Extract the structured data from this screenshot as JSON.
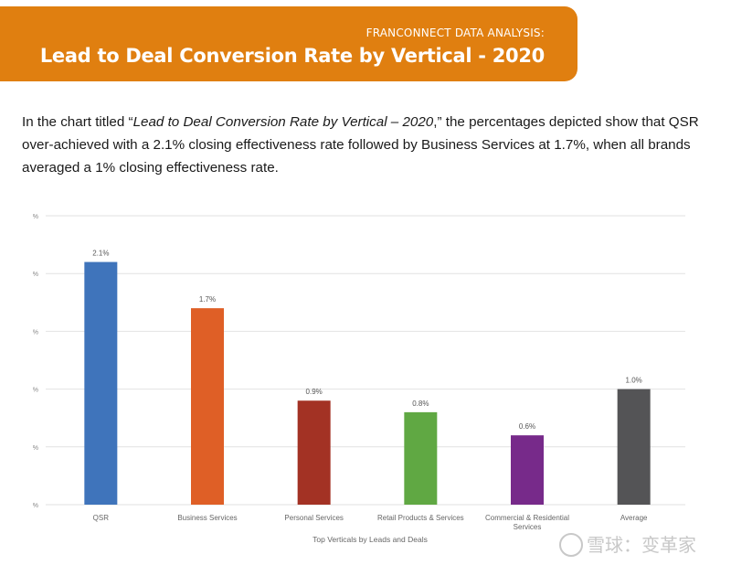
{
  "banner": {
    "kicker": "FRANCONNECT DATA ANALYSIS:",
    "title": "Lead to Deal Conversion Rate by Vertical - 2020",
    "color": "#e07f10"
  },
  "intro": {
    "before": "In the chart titled “",
    "italic": "Lead to Deal Conversion Rate by Vertical – 2020",
    "after": ",” the percentages depicted show that QSR over-achieved with a 2.1% closing effectiveness rate followed by Business Services at 1.7%, when all brands averaged a 1% closing effectiveness rate."
  },
  "chart_data": {
    "type": "bar",
    "categories": [
      "QSR",
      "Business Services",
      "Personal Services",
      "Retail Products & Services",
      "Commercial & Residential Services",
      "Average"
    ],
    "values": [
      2.1,
      1.7,
      0.9,
      0.8,
      0.6,
      1.0
    ],
    "data_labels": [
      "2.1%",
      "1.7%",
      "0.9%",
      "0.8%",
      "0.6%",
      "1.0%"
    ],
    "colors": [
      "#3f74bb",
      "#df5f26",
      "#a33224",
      "#60a843",
      "#772a8a",
      "#545456"
    ],
    "xlabel": "Top Verticals by Leads and Deals",
    "ylabel": "",
    "y_tick_labels": [
      "%",
      "%",
      "%",
      "%",
      "%",
      "%"
    ],
    "ylim": [
      0,
      2.5
    ],
    "grid": true,
    "legend": "none"
  },
  "watermark": {
    "text": "雪球：变革家"
  }
}
